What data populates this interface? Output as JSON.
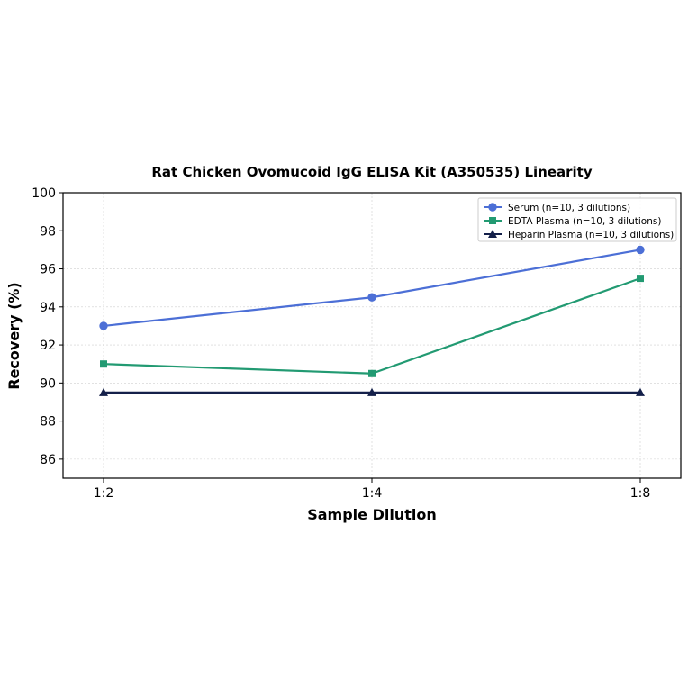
{
  "chart_data": {
    "type": "line",
    "title": "Rat Chicken Ovomucoid IgG ELISA Kit (A350535) Linearity",
    "xlabel": "Sample Dilution",
    "ylabel": "Recovery (%)",
    "categories": [
      "1:2",
      "1:4",
      "1:8"
    ],
    "ylim": [
      85,
      100
    ],
    "yticks": [
      86,
      88,
      90,
      92,
      94,
      96,
      98,
      100
    ],
    "grid": true,
    "legend_position": "top-right",
    "series": [
      {
        "name": "Serum (n=10, 3 dilutions)",
        "values": [
          93.0,
          94.5,
          97.0
        ],
        "color": "#4c6fd6",
        "marker": "circle"
      },
      {
        "name": "EDTA Plasma (n=10, 3 dilutions)",
        "values": [
          91.0,
          90.5,
          95.5
        ],
        "color": "#229a72",
        "marker": "square"
      },
      {
        "name": "Heparin Plasma (n=10, 3 dilutions)",
        "values": [
          89.5,
          89.5,
          89.5
        ],
        "color": "#14204a",
        "marker": "triangle"
      }
    ]
  }
}
